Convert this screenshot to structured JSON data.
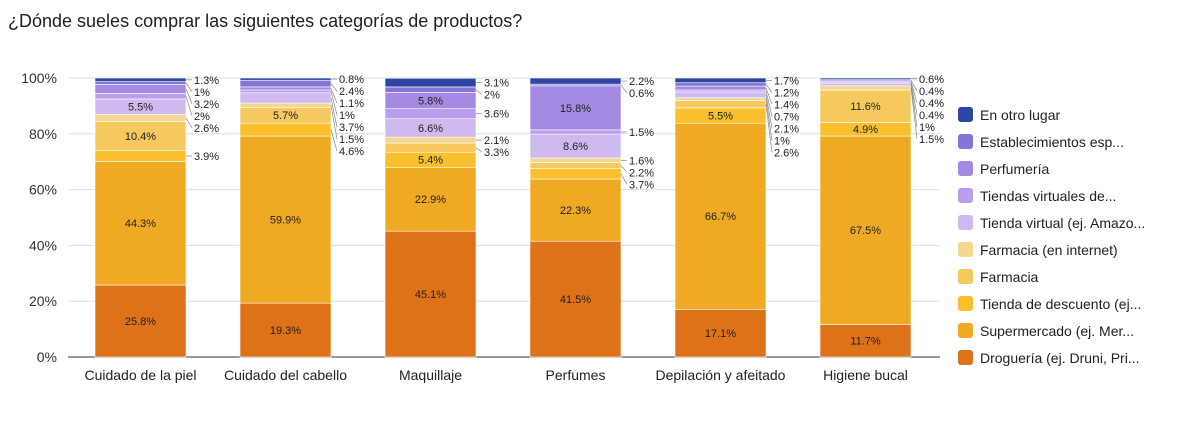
{
  "chart_data": {
    "type": "bar",
    "stacked": true,
    "percent": true,
    "title": "¿Dónde sueles comprar las siguientes categorías de productos?",
    "xlabel": "",
    "ylabel": "",
    "ylim": [
      0,
      100
    ],
    "yticks": [
      "0%",
      "20%",
      "40%",
      "60%",
      "80%",
      "100%"
    ],
    "grid": true,
    "legend_position": "right",
    "categories": [
      "Cuidado de la piel",
      "Cuidado del cabello",
      "Maquillaje",
      "Perfumes",
      "Depilación y afeitado",
      "Higiene bucal"
    ],
    "series": [
      {
        "name": "Droguería (ej. Druni, Pri...",
        "color": "#dd7219",
        "values": [
          25.8,
          19.3,
          45.1,
          41.5,
          17.1,
          11.7
        ]
      },
      {
        "name": "Supermercado (ej. Mer...",
        "color": "#f0a923",
        "values": [
          44.3,
          59.9,
          22.9,
          22.3,
          66.7,
          67.5
        ]
      },
      {
        "name": "Tienda de descuento (ej...",
        "color": "#f9bf2c",
        "values": [
          3.9,
          4.6,
          5.4,
          3.7,
          5.5,
          4.9
        ]
      },
      {
        "name": "Farmacia",
        "color": "#f6c95e",
        "values": [
          10.4,
          5.7,
          3.3,
          2.2,
          2.6,
          11.6
        ]
      },
      {
        "name": "Farmacia (en internet)",
        "color": "#f3d690",
        "values": [
          2.6,
          1.5,
          2.1,
          1.6,
          1,
          1.5
        ]
      },
      {
        "name": "Tienda virtual (ej. Amazo...",
        "color": "#cfbaf0",
        "values": [
          5.5,
          3.7,
          6.6,
          8.6,
          2.1,
          1
        ]
      },
      {
        "name": "Tiendas virtuales de...",
        "color": "#ba9ded",
        "values": [
          2,
          1,
          3.6,
          1.5,
          0.7,
          0.4
        ]
      },
      {
        "name": "Perfumería",
        "color": "#a38be4",
        "values": [
          3.2,
          1.1,
          5.8,
          15.8,
          1.4,
          0.4
        ]
      },
      {
        "name": "Establecimientos esp...",
        "color": "#8476d6",
        "values": [
          1,
          2.4,
          2,
          0.6,
          1.2,
          0.4
        ]
      },
      {
        "name": "En otro lugar",
        "color": "#2e46a3",
        "values": [
          1.3,
          0.8,
          3.1,
          2.2,
          1.7,
          0.6
        ]
      }
    ]
  }
}
